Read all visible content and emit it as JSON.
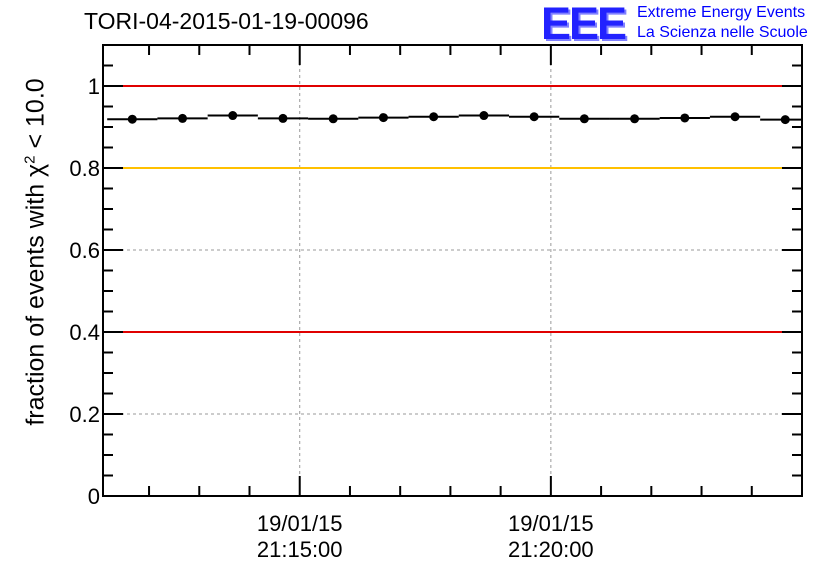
{
  "chart_data": {
    "type": "scatter",
    "title": "TORI-04-2015-01-19-00096",
    "ylabel": "fraction of events with χ² < 10.0",
    "ylabel_parts": {
      "pre": "fraction of events with ",
      "chi": "χ",
      "sup": "2",
      "post": " < 10.0"
    },
    "ylim": [
      0,
      1.1
    ],
    "y_ticks": [
      "0",
      "0.2",
      "0.4",
      "0.6",
      "0.8",
      "1"
    ],
    "x_ticks": [
      {
        "date": "19/01/15",
        "time": "21:15:00"
      },
      {
        "date": "19/01/15",
        "time": "21:20:00"
      }
    ],
    "x_range": [
      "21:11:05",
      "21:25:00"
    ],
    "grid": true,
    "reference_lines": [
      {
        "y": 1.0,
        "color": "#e00000"
      },
      {
        "y": 0.8,
        "color": "#ffc000"
      },
      {
        "y": 0.4,
        "color": "#e00000"
      }
    ],
    "series": [
      {
        "x": [
          "21:11:40",
          "21:12:40",
          "21:13:40",
          "21:14:40",
          "21:15:40",
          "21:16:40",
          "21:17:40",
          "21:18:40",
          "21:19:40",
          "21:20:40",
          "21:21:40",
          "21:22:40",
          "21:23:40",
          "21:24:40"
        ],
        "values": [
          0.919,
          0.921,
          0.928,
          0.921,
          0.92,
          0.923,
          0.925,
          0.928,
          0.925,
          0.92,
          0.92,
          0.922,
          0.925,
          0.918
        ],
        "color": "#000000"
      }
    ]
  },
  "logo": {
    "mark": "EEE",
    "line1": "Extreme Energy Events",
    "line2": "La Scienza nelle Scuole",
    "color": "#0000ff"
  }
}
